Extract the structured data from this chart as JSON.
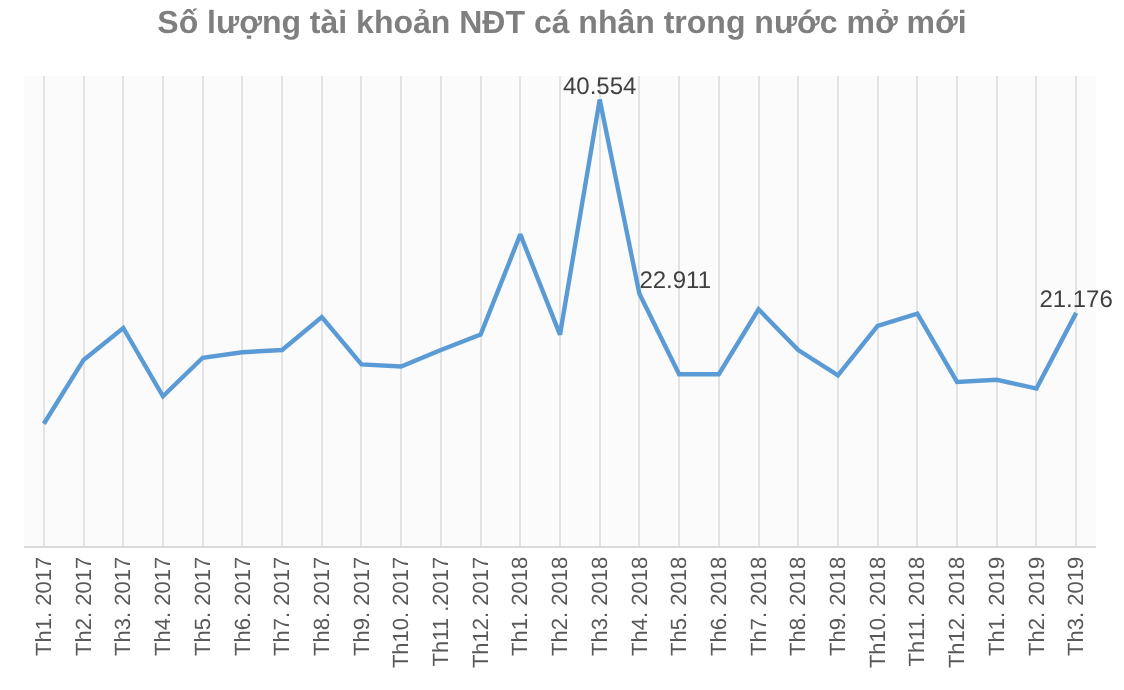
{
  "chart_data": {
    "type": "line",
    "title": "Số lượng tài khoản NĐT cá nhân trong nước mở mới",
    "categories": [
      "Th1. 2017",
      "Th2. 2017",
      "Th3. 2017",
      "Th4. 2017",
      "Th5. 2017",
      "Th6. 2017",
      "Th7. 2017",
      "Th8. 2017",
      "Th9. 2017",
      "Th10. 2017",
      "Th11 .2017",
      "Th12. 2017",
      "Th1. 2018",
      "Th2. 2018",
      "Th3. 2018",
      "Th4. 2018",
      "Th5. 2018",
      "Th6. 2018",
      "Th7. 2018",
      "Th8. 2018",
      "Th9. 2018",
      "Th10. 2018",
      "Th11. 2018",
      "Th12. 2018",
      "Th1. 2019",
      "Th2. 2019",
      "Th3. 2019"
    ],
    "series": [
      {
        "color": "#5b9bd5",
        "values": [
          11100,
          16900,
          19800,
          13600,
          17100,
          17600,
          17800,
          20800,
          16500,
          16300,
          17800,
          19200,
          28300,
          19200,
          40554,
          22911,
          15600,
          15600,
          21500,
          17800,
          15500,
          20000,
          21100,
          14900,
          15100,
          14300,
          21176
        ],
        "value_labels": [
          null,
          null,
          null,
          null,
          null,
          null,
          null,
          null,
          null,
          null,
          null,
          null,
          null,
          null,
          "40.554",
          "22.911",
          null,
          null,
          null,
          null,
          null,
          null,
          null,
          null,
          null,
          null,
          "21.176"
        ]
      }
    ],
    "grid": "x",
    "marker": "none",
    "line_style": "solid"
  }
}
